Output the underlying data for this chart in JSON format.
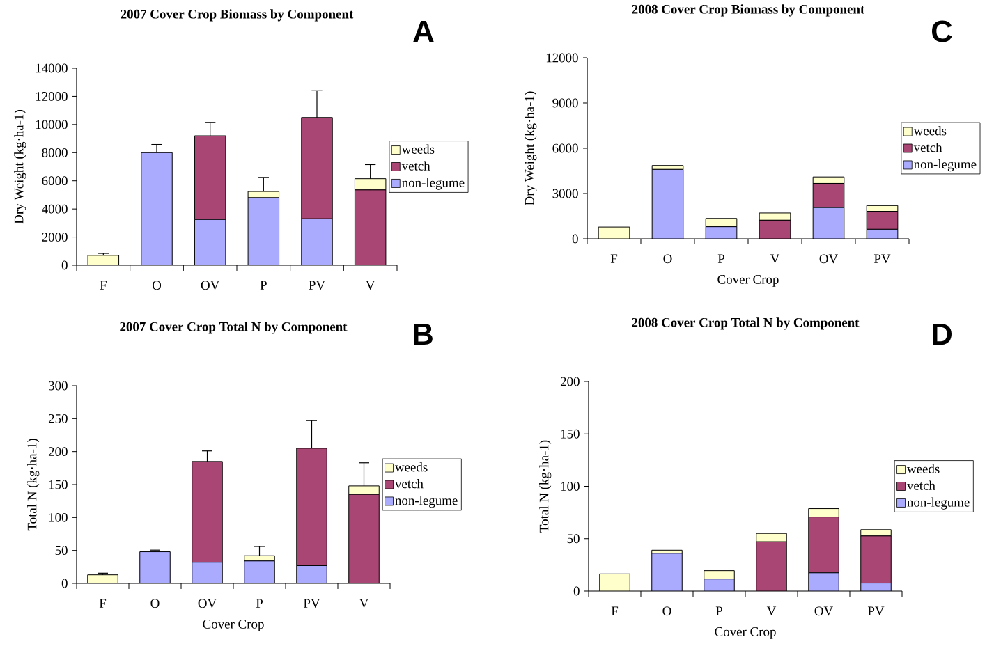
{
  "chart_data": [
    {
      "type": "bar",
      "title": "2007 Cover Crop Biomass by Component",
      "ylabel": "Dry Weight (kg·ha-1)",
      "annotations": [
        "A"
      ],
      "categories": [
        "F",
        "O",
        "OV",
        "P",
        "PV",
        "V"
      ],
      "stacked": true,
      "legend": "right",
      "ylim": [
        0,
        14000
      ],
      "yticks": [
        0,
        2000,
        4000,
        6000,
        8000,
        10000,
        12000,
        14000
      ],
      "series": [
        {
          "name": "non-legume",
          "color": "#aaaaff",
          "values": [
            null,
            8000,
            3250,
            4800,
            3300,
            null
          ],
          "errors": [
            null,
            580,
            null,
            null,
            null,
            null
          ]
        },
        {
          "name": "vetch",
          "color": "#aa4673",
          "values": [
            null,
            null,
            5950,
            null,
            7200,
            5350
          ],
          "errors": [
            null,
            null,
            950,
            null,
            1900,
            null
          ]
        },
        {
          "name": "weeds",
          "color": "#ffffcc",
          "values": [
            700,
            null,
            null,
            440,
            null,
            800
          ],
          "errors": [
            140,
            null,
            null,
            1000,
            null,
            1000
          ]
        }
      ]
    },
    {
      "type": "bar",
      "title": "2008 Cover Crop Biomass by Component",
      "xlabel": "Cover Crop",
      "ylabel": "Dry Weight (kg·ha-1)",
      "annotations": [
        "C"
      ],
      "categories": [
        "F",
        "O",
        "P",
        "V",
        "OV",
        "PV"
      ],
      "stacked": true,
      "legend": "right",
      "ylim": [
        0,
        12000
      ],
      "yticks": [
        0,
        3000,
        6000,
        9000,
        12000
      ],
      "series": [
        {
          "name": "non-legume",
          "color": "#aaaaff",
          "values": [
            null,
            4600,
            800,
            null,
            2070,
            630
          ]
        },
        {
          "name": "vetch",
          "color": "#aa4673",
          "values": [
            null,
            null,
            null,
            1230,
            1600,
            1190
          ]
        },
        {
          "name": "weeds",
          "color": "#ffffcc",
          "values": [
            780,
            260,
            550,
            480,
            430,
            380
          ]
        }
      ]
    },
    {
      "type": "bar",
      "title": "2007 Cover Crop Total N by Component",
      "xlabel": "Cover Crop",
      "ylabel": "Total N (kg·ha-1)",
      "annotations": [
        "B"
      ],
      "categories": [
        "F",
        "O",
        "OV",
        "P",
        "PV",
        "V"
      ],
      "stacked": true,
      "legend": "right",
      "ylim": [
        0,
        300
      ],
      "yticks": [
        0,
        50,
        100,
        150,
        200,
        250,
        300
      ],
      "series": [
        {
          "name": "non-legume",
          "color": "#aaaaff",
          "values": [
            null,
            48,
            32,
            34,
            27,
            null
          ],
          "errors": [
            null,
            2.5,
            null,
            null,
            null,
            null
          ]
        },
        {
          "name": "vetch",
          "color": "#aa4673",
          "values": [
            null,
            null,
            153,
            null,
            178,
            135
          ],
          "errors": [
            null,
            null,
            16,
            null,
            42,
            null
          ]
        },
        {
          "name": "weeds",
          "color": "#ffffcc",
          "values": [
            13,
            null,
            null,
            8,
            null,
            13
          ],
          "errors": [
            2.5,
            null,
            null,
            14,
            null,
            35
          ]
        }
      ]
    },
    {
      "type": "bar",
      "title": "2008 Cover Crop Total N by Component",
      "xlabel": "Cover Crop",
      "ylabel": "Total N (kg·ha-1)",
      "annotations": [
        "D"
      ],
      "categories": [
        "F",
        "O",
        "P",
        "V",
        "OV",
        "PV"
      ],
      "stacked": true,
      "legend": "right",
      "ylim": [
        0,
        200
      ],
      "yticks": [
        0,
        50,
        100,
        150,
        200
      ],
      "series": [
        {
          "name": "non-legume",
          "color": "#aaaaff",
          "values": [
            null,
            36,
            11.5,
            null,
            17.4,
            7.6
          ]
        },
        {
          "name": "vetch",
          "color": "#aa4673",
          "values": [
            null,
            null,
            null,
            47,
            53.3,
            45
          ]
        },
        {
          "name": "weeds",
          "color": "#ffffcc",
          "values": [
            16.4,
            3,
            8,
            8,
            8,
            6
          ]
        }
      ]
    }
  ]
}
